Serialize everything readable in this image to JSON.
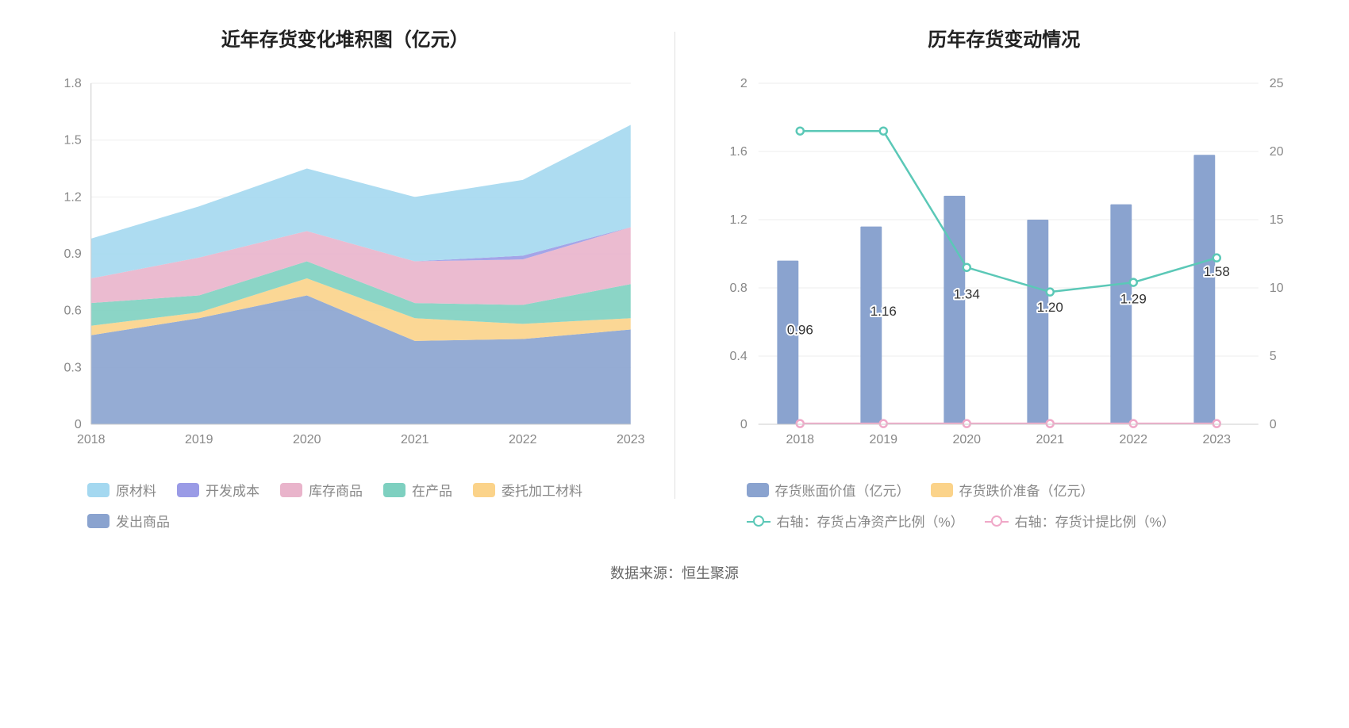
{
  "source_label": "数据来源：恒生聚源",
  "left_chart": {
    "type": "stacked-area",
    "title": "近年存货变化堆积图（亿元）",
    "title_fontsize": 24,
    "categories": [
      "2018",
      "2019",
      "2020",
      "2021",
      "2022",
      "2023"
    ],
    "ylim": [
      0,
      1.8
    ],
    "ytick_step": 0.3,
    "yticks": [
      "0",
      "0.3",
      "0.6",
      "0.9",
      "1.2",
      "1.5",
      "1.8"
    ],
    "grid_color": "#eeeeee",
    "axis_label_color": "#888888",
    "axis_label_fontsize": 16,
    "series": [
      {
        "name": "发出商品",
        "color": "#8aa3cf",
        "values": [
          0.47,
          0.56,
          0.68,
          0.44,
          0.45,
          0.5
        ]
      },
      {
        "name": "委托加工材料",
        "color": "#fbd38a",
        "values": [
          0.05,
          0.03,
          0.09,
          0.12,
          0.08,
          0.06
        ]
      },
      {
        "name": "在产品",
        "color": "#7ed0c0",
        "values": [
          0.12,
          0.09,
          0.09,
          0.08,
          0.1,
          0.18
        ]
      },
      {
        "name": "库存商品",
        "color": "#e9b4cb",
        "values": [
          0.13,
          0.2,
          0.16,
          0.22,
          0.24,
          0.3
        ]
      },
      {
        "name": "开发成本",
        "color": "#9a9be6",
        "values": [
          0.0,
          0.0,
          0.0,
          0.0,
          0.02,
          0.0
        ]
      },
      {
        "name": "原材料",
        "color": "#a4d8f0",
        "values": [
          0.21,
          0.27,
          0.33,
          0.34,
          0.4,
          0.54
        ]
      }
    ],
    "legend_order": [
      "原材料",
      "开发成本",
      "库存商品",
      "在产品",
      "委托加工材料",
      "发出商品"
    ]
  },
  "right_chart": {
    "type": "bar-line-combo",
    "title": "历年存货变动情况",
    "title_fontsize": 24,
    "categories": [
      "2018",
      "2019",
      "2020",
      "2021",
      "2022",
      "2023"
    ],
    "y_left": {
      "lim": [
        0,
        2
      ],
      "step": 0.4,
      "ticks": [
        "0",
        "0.4",
        "0.8",
        "1.2",
        "1.6",
        "2"
      ]
    },
    "y_right": {
      "lim": [
        0,
        25
      ],
      "step": 5,
      "ticks": [
        "0",
        "5",
        "10",
        "15",
        "20",
        "25"
      ]
    },
    "grid_color": "#eeeeee",
    "axis_label_color": "#888888",
    "axis_label_fontsize": 16,
    "bar_width": 0.55,
    "bars": [
      {
        "name": "存货账面价值（亿元）",
        "color": "#8aa3cf",
        "values": [
          0.96,
          1.16,
          1.34,
          1.2,
          1.29,
          1.58
        ],
        "labels": [
          "0.96",
          "1.16",
          "1.34",
          "1.20",
          "1.29",
          "1.58"
        ]
      },
      {
        "name": "存货跌价准备（亿元）",
        "color": "#fbd38a",
        "values": [
          0.0,
          0.0,
          0.0,
          0.0,
          0.0,
          0.0
        ]
      }
    ],
    "lines": [
      {
        "name": "右轴：存货占净资产比例（%）",
        "color": "#5bc8b7",
        "values": [
          21.5,
          21.5,
          11.5,
          9.7,
          10.4,
          12.2
        ],
        "marker": "circle"
      },
      {
        "name": "右轴：存货计提比例（%）",
        "color": "#f0a8c8",
        "values": [
          0.05,
          0.05,
          0.05,
          0.05,
          0.05,
          0.05
        ],
        "marker": "circle"
      }
    ],
    "legend_order": [
      "存货账面价值（亿元）",
      "存货跌价准备（亿元）",
      "右轴：存货占净资产比例（%）",
      "右轴：存货计提比例（%）"
    ]
  }
}
